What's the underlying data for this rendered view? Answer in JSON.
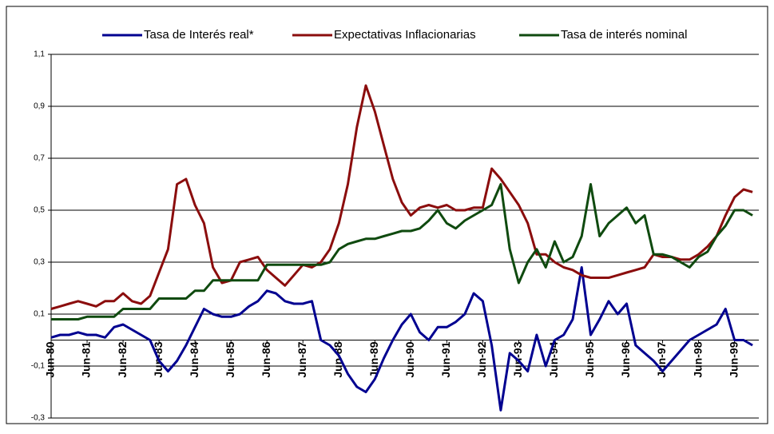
{
  "chart_data": {
    "type": "line",
    "categories": [
      "Jun-80",
      null,
      null,
      null,
      "Jun-81",
      null,
      null,
      null,
      "Jun-82",
      null,
      null,
      null,
      "Jun-83",
      null,
      null,
      null,
      "Jun-84",
      null,
      null,
      null,
      "Jun-85",
      null,
      null,
      null,
      "Jun-86",
      null,
      null,
      null,
      "Jun-87",
      null,
      null,
      null,
      "Jun-88",
      null,
      null,
      null,
      "Jun-89",
      null,
      null,
      null,
      "Jun-90",
      null,
      null,
      null,
      "Jun-91",
      null,
      null,
      null,
      "Jun-92",
      null,
      null,
      null,
      "Jun-93",
      null,
      null,
      null,
      "Jun-94",
      null,
      null,
      null,
      "Jun-95",
      null,
      null,
      null,
      "Jun-96",
      null,
      null,
      null,
      "Jun-97",
      null,
      null,
      null,
      "Jun-98",
      null,
      null,
      null,
      "Jun-99",
      null,
      null
    ],
    "series": [
      {
        "name": "Tasa de Interés real*",
        "color": "#000090",
        "values": [
          0.01,
          0.02,
          0.02,
          0.03,
          0.02,
          0.02,
          0.01,
          0.05,
          0.06,
          0.04,
          0.02,
          0.0,
          -0.08,
          -0.12,
          -0.08,
          -0.02,
          0.05,
          0.12,
          0.1,
          0.09,
          0.09,
          0.1,
          0.13,
          0.15,
          0.19,
          0.18,
          0.15,
          0.14,
          0.14,
          0.15,
          0.0,
          -0.02,
          -0.06,
          -0.13,
          -0.18,
          -0.2,
          -0.15,
          -0.07,
          0.0,
          0.06,
          0.1,
          0.03,
          0.0,
          0.05,
          0.05,
          0.07,
          0.1,
          0.18,
          0.15,
          -0.02,
          -0.27,
          -0.05,
          -0.08,
          -0.12,
          0.02,
          -0.1,
          0.0,
          0.02,
          0.08,
          0.28,
          0.02,
          0.08,
          0.15,
          0.1,
          0.14,
          -0.02,
          -0.05,
          -0.08,
          -0.12,
          -0.08,
          -0.04,
          0.0,
          0.02,
          0.04,
          0.06,
          0.12,
          0.0,
          0.0,
          -0.02
        ]
      },
      {
        "name": "Expectativas Inflacionarias",
        "color": "#8b0d0d",
        "values": [
          0.12,
          0.13,
          0.14,
          0.15,
          0.14,
          0.13,
          0.15,
          0.15,
          0.18,
          0.15,
          0.14,
          0.17,
          0.26,
          0.35,
          0.6,
          0.62,
          0.52,
          0.45,
          0.28,
          0.22,
          0.23,
          0.3,
          0.31,
          0.32,
          0.27,
          0.24,
          0.21,
          0.25,
          0.29,
          0.28,
          0.3,
          0.35,
          0.45,
          0.6,
          0.82,
          0.98,
          0.88,
          0.75,
          0.62,
          0.53,
          0.48,
          0.51,
          0.52,
          0.51,
          0.52,
          0.5,
          0.5,
          0.51,
          0.51,
          0.66,
          0.62,
          0.57,
          0.52,
          0.45,
          0.33,
          0.33,
          0.3,
          0.28,
          0.27,
          0.25,
          0.24,
          0.24,
          0.24,
          0.25,
          0.26,
          0.27,
          0.28,
          0.33,
          0.32,
          0.32,
          0.31,
          0.31,
          0.33,
          0.36,
          0.4,
          0.48,
          0.55,
          0.58,
          0.57
        ]
      },
      {
        "name": "Tasa de interés nominal",
        "color": "#0f4a0f",
        "values": [
          0.08,
          0.08,
          0.08,
          0.08,
          0.09,
          0.09,
          0.09,
          0.09,
          0.12,
          0.12,
          0.12,
          0.12,
          0.16,
          0.16,
          0.16,
          0.16,
          0.19,
          0.19,
          0.23,
          0.23,
          0.23,
          0.23,
          0.23,
          0.23,
          0.29,
          0.29,
          0.29,
          0.29,
          0.29,
          0.29,
          0.29,
          0.3,
          0.35,
          0.37,
          0.38,
          0.39,
          0.39,
          0.4,
          0.41,
          0.42,
          0.42,
          0.43,
          0.46,
          0.5,
          0.45,
          0.43,
          0.46,
          0.48,
          0.5,
          0.52,
          0.6,
          0.35,
          0.22,
          0.3,
          0.35,
          0.28,
          0.38,
          0.3,
          0.32,
          0.4,
          0.6,
          0.4,
          0.45,
          0.48,
          0.51,
          0.45,
          0.48,
          0.33,
          0.33,
          0.32,
          0.3,
          0.28,
          0.32,
          0.34,
          0.4,
          0.44,
          0.5,
          0.5,
          0.48
        ]
      }
    ],
    "ylim": [
      -0.3,
      1.1
    ],
    "yticks": [
      {
        "value": -0.3,
        "label": "-0,3"
      },
      {
        "value": -0.1,
        "label": "-0,1"
      },
      {
        "value": 0.1,
        "label": "0,1"
      },
      {
        "value": 0.3,
        "label": "0,3"
      },
      {
        "value": 0.5,
        "label": "0,5"
      },
      {
        "value": 0.7,
        "label": "0,7"
      },
      {
        "value": 0.9,
        "label": "0,9"
      },
      {
        "value": 1.1,
        "label": "1,1"
      }
    ],
    "grid": true
  }
}
